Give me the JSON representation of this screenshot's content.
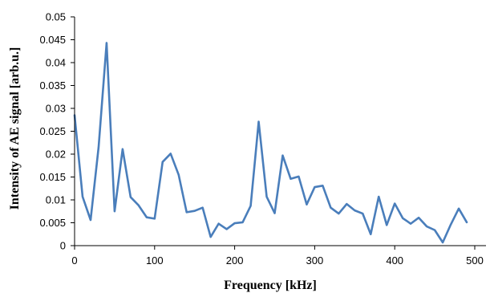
{
  "chart_data": {
    "type": "line",
    "title": "",
    "xlabel": "Frequency [kHz]",
    "ylabel": "Intensity of AE signal [arb.u.]",
    "xlim": [
      0,
      500
    ],
    "ylim": [
      0,
      0.05
    ],
    "xticks": [
      0,
      100,
      200,
      300,
      400,
      500
    ],
    "xtick_labels": [
      "0",
      "100",
      "200",
      "300",
      "400",
      "500"
    ],
    "yticks": [
      0,
      0.005,
      0.01,
      0.015,
      0.02,
      0.025,
      0.03,
      0.035,
      0.04,
      0.045,
      0.05
    ],
    "ytick_labels": [
      "0",
      "0.005",
      "0.01",
      "0.015",
      "0.02",
      "0.025",
      "0.03",
      "0.035",
      "0.04",
      "0.045",
      "0.05"
    ],
    "grid": false,
    "legend": false,
    "series": [
      {
        "color": "#4a7ebb",
        "x": [
          0,
          10,
          20,
          30,
          40,
          50,
          60,
          70,
          80,
          90,
          100,
          110,
          120,
          130,
          140,
          150,
          160,
          170,
          180,
          190,
          200,
          210,
          220,
          230,
          240,
          250,
          260,
          270,
          280,
          290,
          300,
          310,
          320,
          330,
          340,
          350,
          360,
          370,
          380,
          390,
          400,
          410,
          420,
          430,
          440,
          450,
          460,
          470,
          480,
          490
        ],
        "y": [
          0.0285,
          0.0107,
          0.0056,
          0.0215,
          0.0443,
          0.0075,
          0.0211,
          0.0106,
          0.0088,
          0.0062,
          0.0059,
          0.0183,
          0.0201,
          0.0155,
          0.0073,
          0.0076,
          0.0083,
          0.0019,
          0.0048,
          0.0036,
          0.0049,
          0.0051,
          0.0087,
          0.0271,
          0.0107,
          0.0071,
          0.0197,
          0.0146,
          0.0151,
          0.009,
          0.0128,
          0.0131,
          0.0083,
          0.007,
          0.0091,
          0.0077,
          0.007,
          0.0025,
          0.0107,
          0.0045,
          0.0092,
          0.006,
          0.0048,
          0.0061,
          0.0042,
          0.0034,
          0.0007,
          0.0046,
          0.0081,
          0.0051
        ]
      }
    ]
  }
}
